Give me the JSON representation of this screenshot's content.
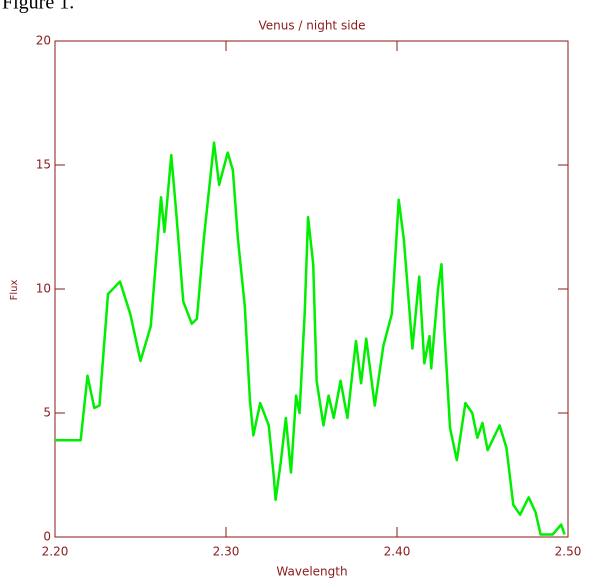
{
  "caption": "Figure 1.",
  "chart_data": {
    "type": "line",
    "title": "Venus / night side",
    "xlabel": "Wavelength",
    "ylabel": "Flux",
    "axis_color": "#8b1a1a",
    "x": [
      2.2,
      2.215,
      2.219,
      2.223,
      2.226,
      2.231,
      2.238,
      2.244,
      2.25,
      2.256,
      2.262,
      2.264,
      2.268,
      2.271,
      2.275,
      2.28,
      2.283,
      2.287,
      2.293,
      2.296,
      2.301,
      2.304,
      2.307,
      2.311,
      2.314,
      2.316,
      2.32,
      2.325,
      2.328,
      2.329,
      2.332,
      2.335,
      2.338,
      2.341,
      2.343,
      2.346,
      2.348,
      2.351,
      2.353,
      2.357,
      2.36,
      2.363,
      2.367,
      2.371,
      2.376,
      2.379,
      2.382,
      2.387,
      2.392,
      2.397,
      2.401,
      2.404,
      2.408,
      2.409,
      2.413,
      2.416,
      2.419,
      2.42,
      2.424,
      2.426,
      2.428,
      2.431,
      2.435,
      2.44,
      2.444,
      2.447,
      2.45,
      2.453,
      2.46,
      2.464,
      2.468,
      2.472,
      2.477,
      2.481,
      2.484,
      2.491,
      2.496,
      2.498
    ],
    "series": [
      {
        "color": "#00ee00",
        "values": [
          3.9,
          3.9,
          6.5,
          5.2,
          5.3,
          9.8,
          10.3,
          9.0,
          7.1,
          8.5,
          13.7,
          12.3,
          15.4,
          13.0,
          9.5,
          8.6,
          8.8,
          12.0,
          15.9,
          14.2,
          15.5,
          14.8,
          12.0,
          9.3,
          5.5,
          4.1,
          5.4,
          4.5,
          2.4,
          1.5,
          3.0,
          4.8,
          2.6,
          5.7,
          5.0,
          9.0,
          12.9,
          11.0,
          6.3,
          4.5,
          5.7,
          4.8,
          6.3,
          4.8,
          7.9,
          6.2,
          8.0,
          5.3,
          7.7,
          9.0,
          13.6,
          12.0,
          8.5,
          7.6,
          10.5,
          7.0,
          8.1,
          6.8,
          10.0,
          11.0,
          8.0,
          4.4,
          3.1,
          5.4,
          5.0,
          4.0,
          4.6,
          3.5,
          4.5,
          3.6,
          1.3,
          0.9,
          1.6,
          1.0,
          0.1,
          0.1,
          0.5,
          0.1
        ]
      }
    ],
    "xlim": [
      2.2,
      2.5
    ],
    "ylim": [
      0,
      20
    ],
    "xticks": [
      {
        "value": 2.2,
        "label": "2.20"
      },
      {
        "value": 2.3,
        "label": "2.30"
      },
      {
        "value": 2.4,
        "label": "2.40"
      },
      {
        "value": 2.5,
        "label": "2.50"
      }
    ],
    "yticks": [
      0,
      5,
      10,
      15,
      20
    ]
  }
}
